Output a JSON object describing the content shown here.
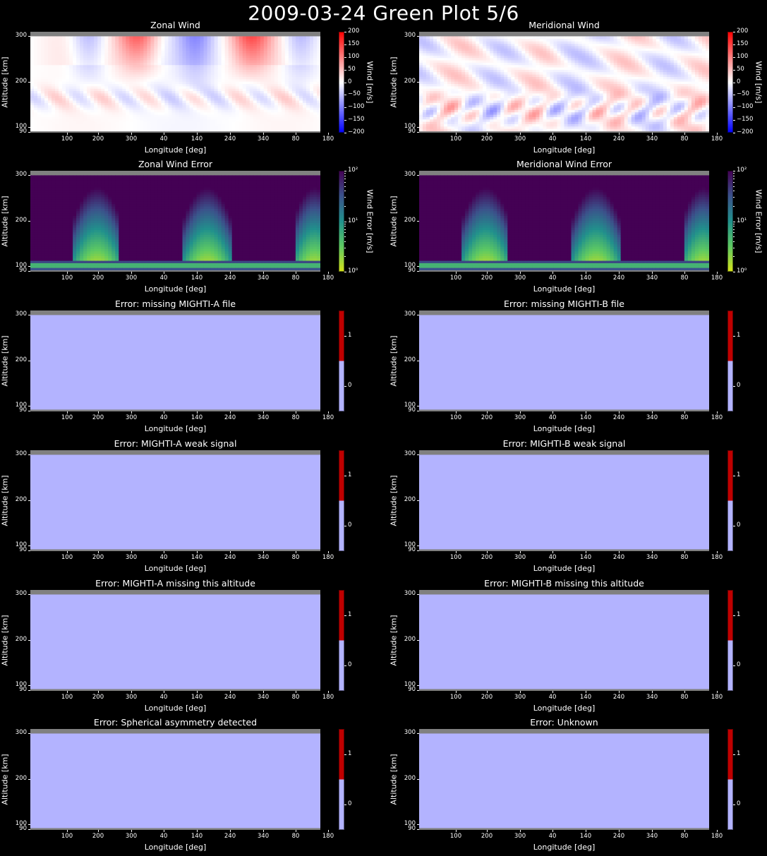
{
  "suptitle": "2009-03-24 Green Plot 5/6",
  "chart_data": [
    {
      "type": "heatmap",
      "title": "Zonal Wind",
      "xlabel": "Longitude [deg]",
      "ylabel": "Altitude [km]",
      "xticks": [
        "100",
        "200",
        "300",
        "40",
        "140",
        "240",
        "340",
        "80",
        "180"
      ],
      "yticks": [
        "90",
        "100",
        "200",
        "300"
      ],
      "ylim": [
        88,
        310
      ],
      "colorbar": {
        "label": "Wind [m/s]",
        "ticks": [
          "200",
          "150",
          "100",
          "50",
          "0",
          "−50",
          "−100",
          "−150",
          "−200"
        ],
        "range": [
          -200,
          200
        ],
        "cmap": "bwr"
      }
    },
    {
      "type": "heatmap",
      "title": "Meridional Wind",
      "xlabel": "Longitude [deg]",
      "ylabel": "Altitude [km]",
      "xticks": [
        "100",
        "200",
        "300",
        "40",
        "140",
        "240",
        "340",
        "80",
        "180"
      ],
      "yticks": [
        "90",
        "100",
        "200",
        "300"
      ],
      "ylim": [
        88,
        310
      ],
      "colorbar": {
        "label": "Wind [m/s]",
        "ticks": [
          "200",
          "150",
          "100",
          "50",
          "0",
          "−50",
          "−100",
          "−150",
          "−200"
        ],
        "range": [
          -200,
          200
        ],
        "cmap": "bwr"
      }
    },
    {
      "type": "heatmap",
      "title": "Zonal Wind Error",
      "xlabel": "Longitude [deg]",
      "ylabel": "Altitude [km]",
      "xticks": [
        "100",
        "200",
        "300",
        "40",
        "140",
        "240",
        "340",
        "80",
        "180"
      ],
      "yticks": [
        "90",
        "100",
        "200",
        "300"
      ],
      "ylim": [
        88,
        310
      ],
      "colorbar": {
        "label": "Wind Error [m/s]",
        "ticks": [
          "10²",
          "10¹",
          "10⁰"
        ],
        "range": [
          1,
          100
        ],
        "scale": "log",
        "cmap": "viridis_r"
      }
    },
    {
      "type": "heatmap",
      "title": "Meridional Wind Error",
      "xlabel": "Longitude [deg]",
      "ylabel": "Altitude [km]",
      "xticks": [
        "100",
        "200",
        "300",
        "40",
        "140",
        "240",
        "340",
        "80",
        "180"
      ],
      "yticks": [
        "90",
        "100",
        "200",
        "300"
      ],
      "ylim": [
        88,
        310
      ],
      "colorbar": {
        "label": "Wind Error [m/s]",
        "ticks": [
          "10²",
          "10¹",
          "10⁰"
        ],
        "range": [
          1,
          100
        ],
        "scale": "log",
        "cmap": "viridis_r"
      }
    },
    {
      "type": "heatmap",
      "title": "Error: missing MIGHTI-A file",
      "xlabel": "Longitude [deg]",
      "ylabel": "Altitude [km]",
      "xticks": [
        "100",
        "200",
        "300",
        "40",
        "140",
        "240",
        "340",
        "80",
        "180"
      ],
      "yticks": [
        "90",
        "100",
        "200",
        "300"
      ],
      "value": 0,
      "colorbar": {
        "label": "",
        "ticks": [
          "1",
          "0"
        ]
      }
    },
    {
      "type": "heatmap",
      "title": "Error: missing MIGHTI-B file",
      "xlabel": "Longitude [deg]",
      "ylabel": "Altitude [km]",
      "xticks": [
        "100",
        "200",
        "300",
        "40",
        "140",
        "240",
        "340",
        "80",
        "180"
      ],
      "yticks": [
        "90",
        "100",
        "200",
        "300"
      ],
      "value": 0,
      "colorbar": {
        "label": "",
        "ticks": [
          "1",
          "0"
        ]
      }
    },
    {
      "type": "heatmap",
      "title": "Error: MIGHTI-A weak signal",
      "xlabel": "Longitude [deg]",
      "ylabel": "Altitude [km]",
      "xticks": [
        "100",
        "200",
        "300",
        "40",
        "140",
        "240",
        "340",
        "80",
        "180"
      ],
      "yticks": [
        "90",
        "100",
        "200",
        "300"
      ],
      "value": 0,
      "colorbar": {
        "label": "",
        "ticks": [
          "1",
          "0"
        ]
      }
    },
    {
      "type": "heatmap",
      "title": "Error: MIGHTI-B weak signal",
      "xlabel": "Longitude [deg]",
      "ylabel": "Altitude [km]",
      "xticks": [
        "100",
        "200",
        "300",
        "40",
        "140",
        "240",
        "340",
        "80",
        "180"
      ],
      "yticks": [
        "90",
        "100",
        "200",
        "300"
      ],
      "value": 0,
      "colorbar": {
        "label": "",
        "ticks": [
          "1",
          "0"
        ]
      }
    },
    {
      "type": "heatmap",
      "title": "Error: MIGHTI-A missing this altitude",
      "xlabel": "Longitude [deg]",
      "ylabel": "Altitude [km]",
      "xticks": [
        "100",
        "200",
        "300",
        "40",
        "140",
        "240",
        "340",
        "80",
        "180"
      ],
      "yticks": [
        "90",
        "100",
        "200",
        "300"
      ],
      "value": 0,
      "colorbar": {
        "label": "",
        "ticks": [
          "1",
          "0"
        ]
      }
    },
    {
      "type": "heatmap",
      "title": "Error: MIGHTI-B missing this altitude",
      "xlabel": "Longitude [deg]",
      "ylabel": "Altitude [km]",
      "xticks": [
        "100",
        "200",
        "300",
        "40",
        "140",
        "240",
        "340",
        "80",
        "180"
      ],
      "yticks": [
        "90",
        "100",
        "200",
        "300"
      ],
      "value": 0,
      "colorbar": {
        "label": "",
        "ticks": [
          "1",
          "0"
        ]
      }
    },
    {
      "type": "heatmap",
      "title": "Error: Spherical asymmetry detected",
      "xlabel": "Longitude [deg]",
      "ylabel": "Altitude [km]",
      "xticks": [
        "100",
        "200",
        "300",
        "40",
        "140",
        "240",
        "340",
        "80",
        "180"
      ],
      "yticks": [
        "90",
        "100",
        "200",
        "300"
      ],
      "value": 0,
      "colorbar": {
        "label": "",
        "ticks": [
          "1",
          "0"
        ]
      }
    },
    {
      "type": "heatmap",
      "title": "Error: Unknown",
      "xlabel": "Longitude [deg]",
      "ylabel": "Altitude [km]",
      "xticks": [
        "100",
        "200",
        "300",
        "40",
        "140",
        "240",
        "340",
        "80",
        "180"
      ],
      "yticks": [
        "90",
        "100",
        "200",
        "300"
      ],
      "value": 0,
      "colorbar": {
        "label": "",
        "ticks": [
          "1",
          "0"
        ]
      }
    }
  ],
  "colors": {
    "background": "#000000",
    "nodata": "#808080",
    "flag_zero": "#b3b3ff",
    "flag_one": "#bf0000",
    "error_low": "#440154",
    "error_high": "#d5e21a"
  }
}
